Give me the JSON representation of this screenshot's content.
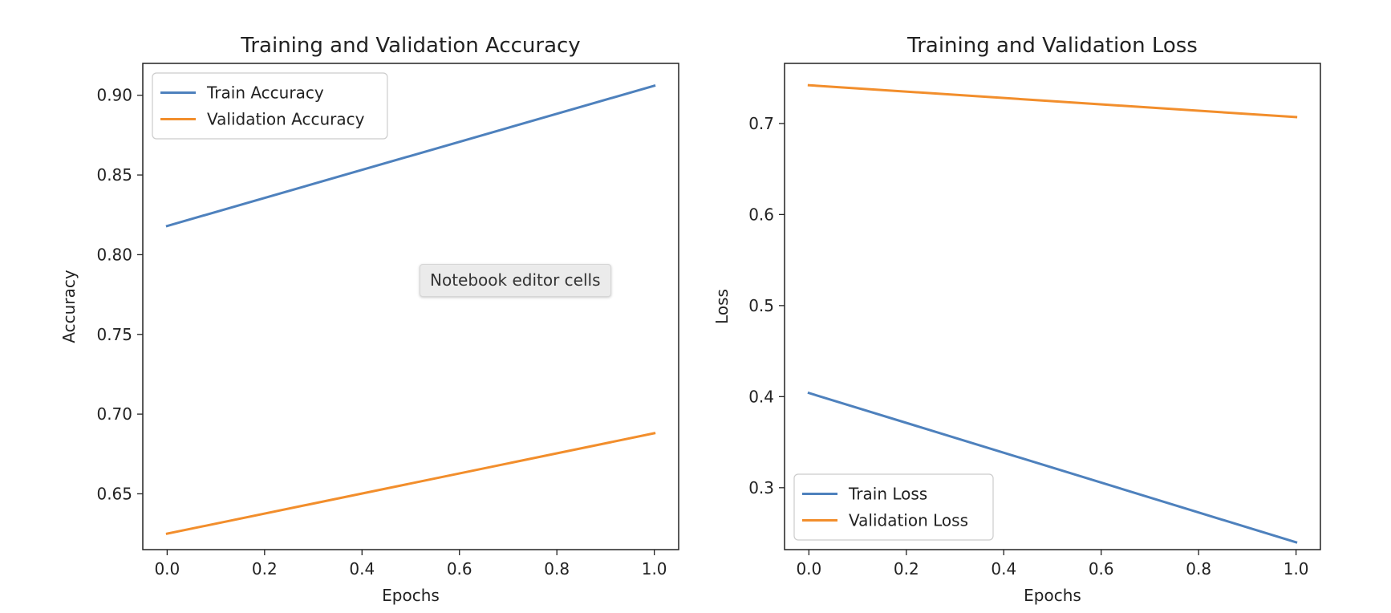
{
  "chart_data": [
    {
      "type": "line",
      "title": "Training and Validation Accuracy",
      "xlabel": "Epochs",
      "ylabel": "Accuracy",
      "x": [
        0,
        1
      ],
      "xlim": [
        -0.05,
        1.05
      ],
      "ylim": [
        0.615,
        0.92
      ],
      "xticks": [
        "0.0",
        "0.2",
        "0.4",
        "0.6",
        "0.8",
        "1.0"
      ],
      "xtick_values": [
        0,
        0.2,
        0.4,
        0.6,
        0.8,
        1.0
      ],
      "yticks": [
        "0.65",
        "0.70",
        "0.75",
        "0.80",
        "0.85",
        "0.90"
      ],
      "ytick_values": [
        0.65,
        0.7,
        0.75,
        0.8,
        0.85,
        0.9
      ],
      "legend_position": "upper-left",
      "grid": false,
      "series": [
        {
          "name": "Train Accuracy",
          "values": [
            0.818,
            0.906
          ],
          "color": "#4e81bd"
        },
        {
          "name": "Validation Accuracy",
          "values": [
            0.625,
            0.688
          ],
          "color": "#f28e2c"
        }
      ]
    },
    {
      "type": "line",
      "title": "Training and Validation Loss",
      "xlabel": "Epochs",
      "ylabel": "Loss",
      "x": [
        0,
        1
      ],
      "xlim": [
        -0.05,
        1.05
      ],
      "ylim": [
        0.232,
        0.766
      ],
      "xticks": [
        "0.0",
        "0.2",
        "0.4",
        "0.6",
        "0.8",
        "1.0"
      ],
      "xtick_values": [
        0,
        0.2,
        0.4,
        0.6,
        0.8,
        1.0
      ],
      "yticks": [
        "0.3",
        "0.4",
        "0.5",
        "0.6",
        "0.7"
      ],
      "ytick_values": [
        0.3,
        0.4,
        0.5,
        0.6,
        0.7
      ],
      "legend_position": "lower-left",
      "grid": false,
      "series": [
        {
          "name": "Train Loss",
          "values": [
            0.404,
            0.24
          ],
          "color": "#4e81bd"
        },
        {
          "name": "Validation Loss",
          "values": [
            0.742,
            0.707
          ],
          "color": "#f28e2c"
        }
      ]
    }
  ],
  "tooltip": {
    "text": "Notebook editor cells"
  }
}
